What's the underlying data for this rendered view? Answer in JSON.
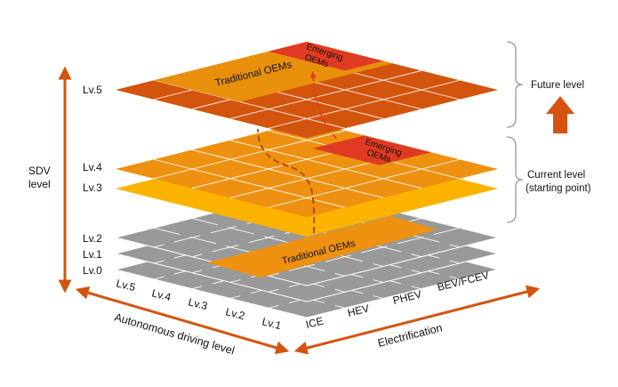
{
  "colors": {
    "lv5_dark": "#d3540c",
    "lv5_light": "#e8900c",
    "lv4": "#ee9110",
    "lv3": "#fbb300",
    "emerging": "#e03b22",
    "gray": "#999999",
    "arrow": "#d4540f",
    "brace": "#999999"
  },
  "axis_sdv": {
    "label_line1": "SDV",
    "label_line2": "level",
    "levels": [
      "Lv.5",
      "Lv.4",
      "Lv.3",
      "Lv.2",
      "Lv.1",
      "Lv.0"
    ]
  },
  "axis_autonomous": {
    "label": "Autonomous driving level",
    "ticks": [
      "Lv.5",
      "Lv.4",
      "Lv.3",
      "Lv.2",
      "Lv.1"
    ]
  },
  "axis_electrification": {
    "label": "Electrification",
    "ticks": [
      "ICE",
      "HEV",
      "PHEV",
      "BEV/FCEV"
    ]
  },
  "regions": {
    "traditional_top": "Traditional OEMs",
    "emerging_top_1": "Emerging",
    "emerging_top_2": "OEMs",
    "emerging_mid_1": "Emerging",
    "emerging_mid_2": "OEMs",
    "traditional_bottom": "Traditional OEMs"
  },
  "legend": {
    "future": "Future level",
    "current_1": "Current level",
    "current_2": "(starting point)"
  }
}
